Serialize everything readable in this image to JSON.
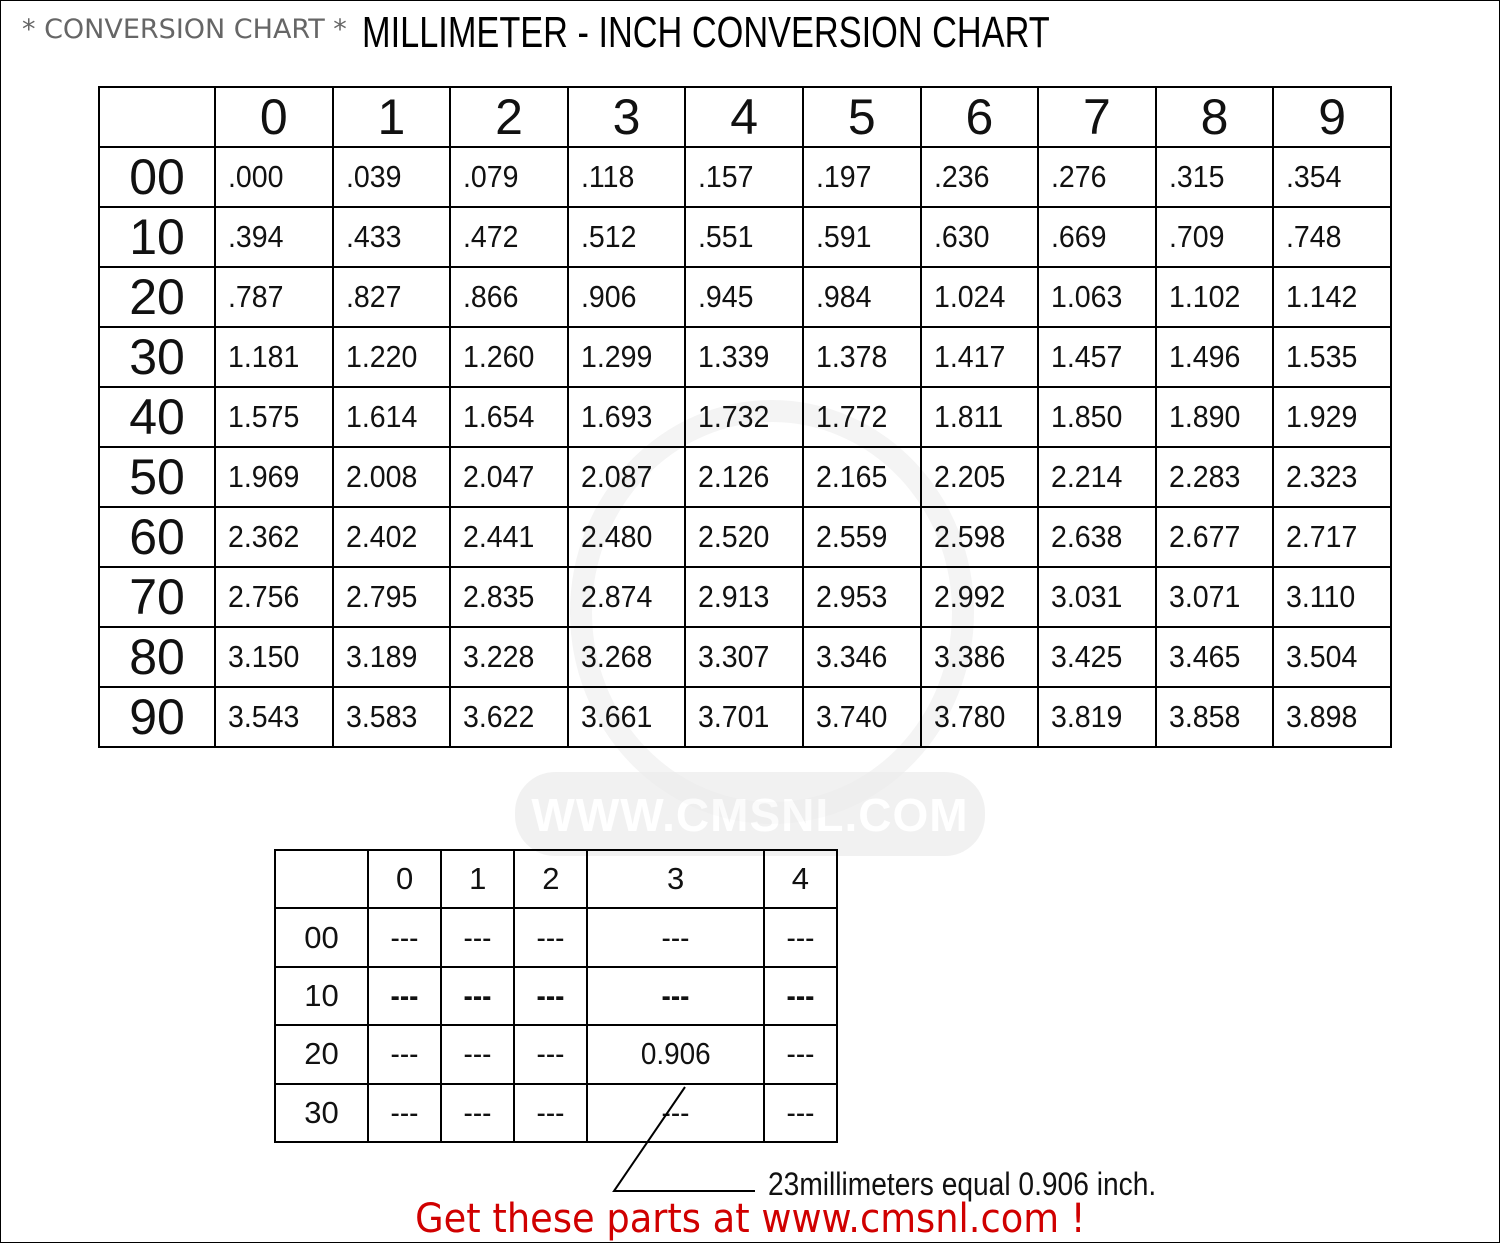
{
  "header": {
    "subtitle": "* CONVERSION CHART *",
    "title": "MILLIMETER - INCH CONVERSION CHART"
  },
  "main_table": {
    "columns": [
      "0",
      "1",
      "2",
      "3",
      "4",
      "5",
      "6",
      "7",
      "8",
      "9"
    ],
    "rows": [
      {
        "label": "00",
        "values": [
          ".000",
          ".039",
          ".079",
          ".118",
          ".157",
          ".197",
          ".236",
          ".276",
          ".315",
          ".354"
        ]
      },
      {
        "label": "10",
        "values": [
          ".394",
          ".433",
          ".472",
          ".512",
          ".551",
          ".591",
          ".630",
          ".669",
          ".709",
          ".748"
        ]
      },
      {
        "label": "20",
        "values": [
          ".787",
          ".827",
          ".866",
          ".906",
          ".945",
          ".984",
          "1.024",
          "1.063",
          "1.102",
          "1.142"
        ]
      },
      {
        "label": "30",
        "values": [
          "1.181",
          "1.220",
          "1.260",
          "1.299",
          "1.339",
          "1.378",
          "1.417",
          "1.457",
          "1.496",
          "1.535"
        ]
      },
      {
        "label": "40",
        "values": [
          "1.575",
          "1.614",
          "1.654",
          "1.693",
          "1.732",
          "1.772",
          "1.811",
          "1.850",
          "1.890",
          "1.929"
        ]
      },
      {
        "label": "50",
        "values": [
          "1.969",
          "2.008",
          "2.047",
          "2.087",
          "2.126",
          "2.165",
          "2.205",
          "2.214",
          "2.283",
          "2.323"
        ]
      },
      {
        "label": "60",
        "values": [
          "2.362",
          "2.402",
          "2.441",
          "2.480",
          "2.520",
          "2.559",
          "2.598",
          "2.638",
          "2.677",
          "2.717"
        ]
      },
      {
        "label": "70",
        "values": [
          "2.756",
          "2.795",
          "2.835",
          "2.874",
          "2.913",
          "2.953",
          "2.992",
          "3.031",
          "3.071",
          "3.110"
        ]
      },
      {
        "label": "80",
        "values": [
          "3.150",
          "3.189",
          "3.228",
          "3.268",
          "3.307",
          "3.346",
          "3.386",
          "3.425",
          "3.465",
          "3.504"
        ]
      },
      {
        "label": "90",
        "values": [
          "3.543",
          "3.583",
          "3.622",
          "3.661",
          "3.701",
          "3.740",
          "3.780",
          "3.819",
          "3.858",
          "3.898"
        ]
      }
    ]
  },
  "example_table": {
    "columns": [
      "0",
      "1",
      "2",
      "3",
      "4"
    ],
    "rows": [
      {
        "label": "00",
        "values": [
          "---",
          "---",
          "---",
          "---",
          "---"
        ]
      },
      {
        "label": "10",
        "values": [
          "---",
          "---",
          "---",
          "---",
          "---"
        ]
      },
      {
        "label": "20",
        "values": [
          "---",
          "---",
          "---",
          "0.906",
          "---"
        ]
      },
      {
        "label": "30",
        "values": [
          "---",
          "---",
          "---",
          "---",
          "---"
        ]
      }
    ]
  },
  "example_note": "23millimeters equal 0.906 inch.",
  "promo": "Get these parts at www.cmsnl.com !",
  "watermark": "WWW.CMSNL.COM",
  "colors": {
    "promo": "#d00000",
    "subtitle": "#666666"
  }
}
